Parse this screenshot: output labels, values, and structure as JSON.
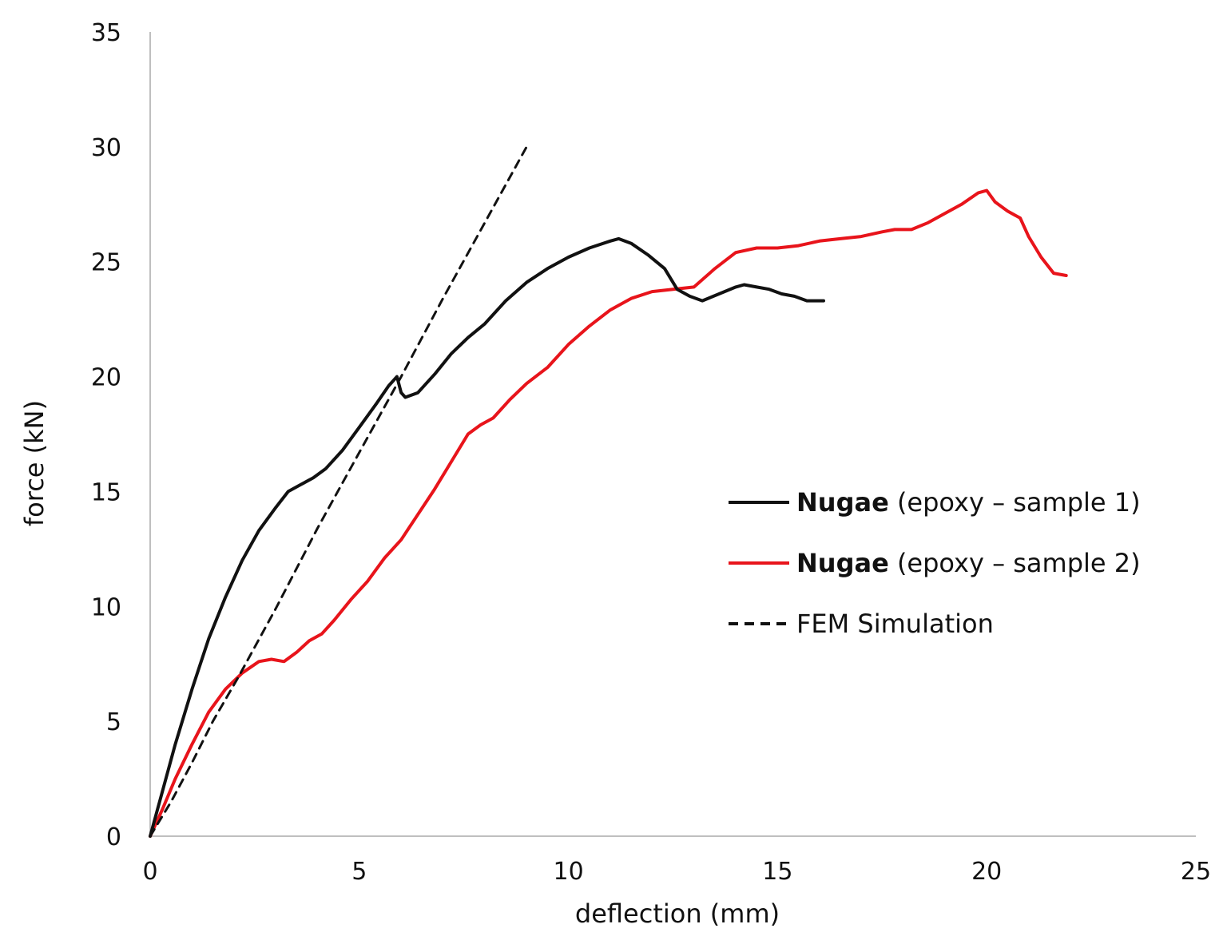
{
  "chart_data": {
    "type": "line",
    "title": "",
    "xlabel": "deflection (mm)",
    "ylabel": "force (kN)",
    "xlim": [
      0,
      25
    ],
    "ylim": [
      0,
      35
    ],
    "xticks": [
      "0",
      "5",
      "10",
      "15",
      "20",
      "25"
    ],
    "yticks": [
      "0",
      "5",
      "10",
      "15",
      "20",
      "25",
      "30",
      "35"
    ],
    "grid": false,
    "legend_position": "center-right",
    "series": [
      {
        "name": "Nugae (epoxy – sample 1)",
        "label_bold": "Nugae",
        "label_rest": " (epoxy – sample 1)",
        "color": "#111111",
        "style": "solid",
        "x": [
          0,
          0.3,
          0.6,
          1.0,
          1.4,
          1.8,
          2.2,
          2.6,
          3.0,
          3.3,
          3.6,
          3.9,
          4.2,
          4.6,
          5.0,
          5.4,
          5.7,
          5.9,
          6.0,
          6.1,
          6.4,
          6.8,
          7.2,
          7.6,
          8.0,
          8.5,
          9.0,
          9.5,
          10.0,
          10.5,
          11.0,
          11.2,
          11.5,
          11.9,
          12.3,
          12.6,
          12.9,
          13.2,
          13.6,
          14.0,
          14.2,
          14.5,
          14.8,
          15.1,
          15.4,
          15.7,
          16.1
        ],
        "y": [
          0,
          2.0,
          4.0,
          6.4,
          8.6,
          10.4,
          12.0,
          13.3,
          14.3,
          15.0,
          15.3,
          15.6,
          16.0,
          16.8,
          17.8,
          18.8,
          19.6,
          20.0,
          19.3,
          19.1,
          19.3,
          20.1,
          21.0,
          21.7,
          22.3,
          23.3,
          24.1,
          24.7,
          25.2,
          25.6,
          25.9,
          26.0,
          25.8,
          25.3,
          24.7,
          23.8,
          23.5,
          23.3,
          23.6,
          23.9,
          24.0,
          23.9,
          23.8,
          23.6,
          23.5,
          23.3,
          23.3
        ]
      },
      {
        "name": "Nugae (epoxy – sample 2)",
        "label_bold": "Nugae",
        "label_rest": " (epoxy – sample 2)",
        "color": "#e8141b",
        "style": "solid",
        "x": [
          0,
          0.3,
          0.6,
          1.0,
          1.4,
          1.8,
          2.2,
          2.6,
          2.9,
          3.2,
          3.5,
          3.8,
          4.1,
          4.4,
          4.8,
          5.2,
          5.6,
          6.0,
          6.4,
          6.8,
          7.2,
          7.6,
          7.9,
          8.2,
          8.6,
          9.0,
          9.5,
          10.0,
          10.5,
          11.0,
          11.5,
          12.0,
          12.5,
          13.0,
          13.5,
          14.0,
          14.5,
          15.0,
          15.5,
          16.0,
          16.5,
          17.0,
          17.5,
          17.8,
          18.2,
          18.6,
          19.0,
          19.4,
          19.8,
          20.0,
          20.2,
          20.5,
          20.8,
          21.0,
          21.3,
          21.6,
          21.9
        ],
        "y": [
          0,
          1.2,
          2.5,
          4.0,
          5.4,
          6.4,
          7.1,
          7.6,
          7.7,
          7.6,
          8.0,
          8.5,
          8.8,
          9.4,
          10.3,
          11.1,
          12.1,
          12.9,
          14.0,
          15.1,
          16.3,
          17.5,
          17.9,
          18.2,
          19.0,
          19.7,
          20.4,
          21.4,
          22.2,
          22.9,
          23.4,
          23.7,
          23.8,
          23.9,
          24.7,
          25.4,
          25.6,
          25.6,
          25.7,
          25.9,
          26.0,
          26.1,
          26.3,
          26.4,
          26.4,
          26.7,
          27.1,
          27.5,
          28.0,
          28.1,
          27.6,
          27.2,
          26.9,
          26.1,
          25.2,
          24.5,
          24.4
        ]
      },
      {
        "name": "FEM Simulation",
        "label_bold": "",
        "label_rest": "FEM Simulation",
        "color": "#111111",
        "style": "dashed",
        "x": [
          0,
          0.5,
          1.0,
          1.5,
          2.1,
          2.4,
          3.0,
          4.0,
          5.0,
          6.0,
          7.0,
          8.0,
          9.0
        ],
        "y": [
          0,
          1.5,
          3.2,
          5.0,
          6.9,
          7.9,
          9.9,
          13.4,
          16.7,
          20.0,
          23.4,
          26.7,
          30.0
        ]
      }
    ]
  }
}
